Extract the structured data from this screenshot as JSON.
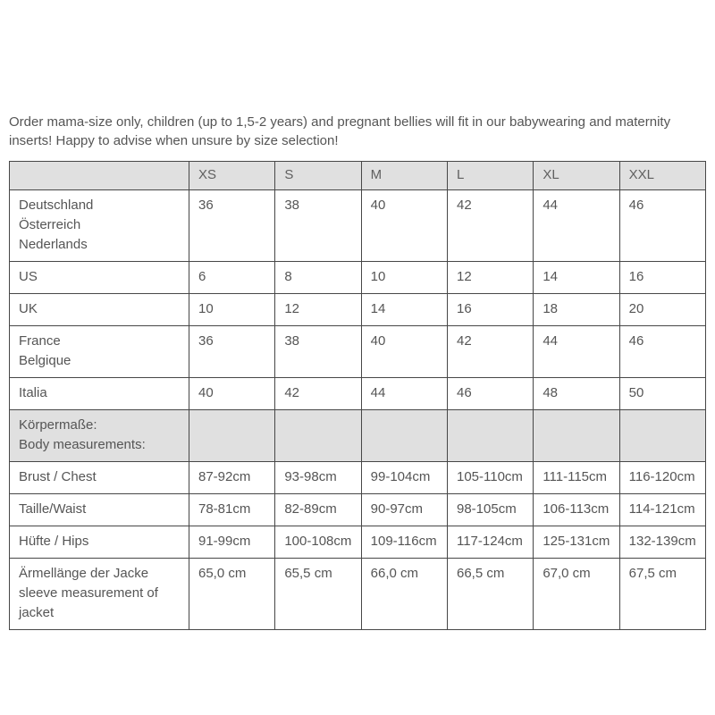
{
  "intro": {
    "text": "Order mama-size only, children (up to 1,5-2 years) and pregnant bellies will fit in our babywearing and maternity inserts! Happy to advise when unsure by size selection!"
  },
  "colors": {
    "header_background": "#e0e0e0",
    "section_row_background": "#e0e0e0",
    "border": "#474747",
    "text": "#555555",
    "page_background": "#ffffff"
  },
  "table": {
    "columns": [
      "",
      "XS",
      "S",
      "M",
      "L",
      "XL",
      "XXL"
    ],
    "rows": [
      {
        "section": false,
        "label": [
          "Deutschland",
          "Österreich",
          "Nederlands"
        ],
        "values": [
          "36",
          "38",
          "40",
          "42",
          "44",
          "46"
        ]
      },
      {
        "section": false,
        "label": [
          "US"
        ],
        "values": [
          "6",
          "8",
          "10",
          "12",
          "14",
          "16"
        ]
      },
      {
        "section": false,
        "label": [
          "UK"
        ],
        "values": [
          "10",
          "12",
          "14",
          "16",
          "18",
          "20"
        ]
      },
      {
        "section": false,
        "label": [
          "France",
          "Belgique"
        ],
        "values": [
          "36",
          "38",
          "40",
          "42",
          "44",
          "46"
        ]
      },
      {
        "section": false,
        "label": [
          "Italia"
        ],
        "values": [
          "40",
          "42",
          "44",
          "46",
          "48",
          "50"
        ]
      },
      {
        "section": true,
        "label": [
          "Körpermaße:",
          "Body measurements:"
        ],
        "values": [
          "",
          "",
          "",
          "",
          "",
          ""
        ]
      },
      {
        "section": false,
        "label": [
          "Brust / Chest"
        ],
        "values": [
          "87-92cm",
          "93-98cm",
          "99-104cm",
          "105-110cm",
          "111-115cm",
          "116-120cm"
        ]
      },
      {
        "section": false,
        "label": [
          "Taille/Waist"
        ],
        "values": [
          "78-81cm",
          "82-89cm",
          "90-97cm",
          "98-105cm",
          "106-113cm",
          "114-121cm"
        ]
      },
      {
        "section": false,
        "label": [
          "Hüfte / Hips"
        ],
        "values": [
          "91-99cm",
          "100-108cm",
          "109-116cm",
          "117-124cm",
          "125-131cm",
          "132-139cm"
        ]
      },
      {
        "section": false,
        "label": [
          "Ärmellänge der Jacke",
          "sleeve measurement of jacket"
        ],
        "values": [
          "65,0 cm",
          "65,5 cm",
          "66,0 cm",
          "66,5 cm",
          "67,0 cm",
          "67,5 cm"
        ]
      }
    ]
  }
}
